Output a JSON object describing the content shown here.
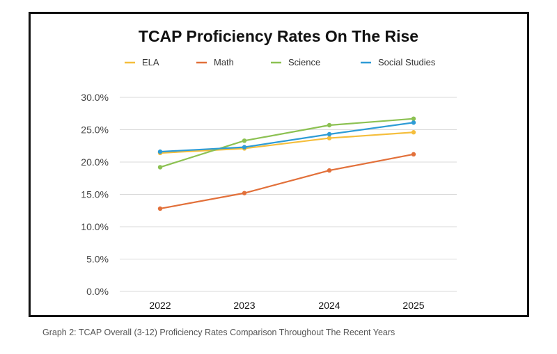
{
  "chart_data": {
    "type": "line",
    "title": "TCAP Proficiency Rates On The Rise",
    "xlabel": "",
    "ylabel": "",
    "categories": [
      "2022",
      "2023",
      "2024",
      "2025"
    ],
    "ylim": [
      0,
      30
    ],
    "yticks": [
      "0.0%",
      "5.0%",
      "10.0%",
      "15.0%",
      "20.0%",
      "25.0%",
      "30.0%"
    ],
    "grid": true,
    "legend_position": "top",
    "series": [
      {
        "name": "ELA",
        "color": "#F5BE3C",
        "values": [
          21.4,
          22.1,
          23.7,
          24.6
        ]
      },
      {
        "name": "Math",
        "color": "#E2703A",
        "values": [
          12.8,
          15.2,
          18.7,
          21.2
        ]
      },
      {
        "name": "Science",
        "color": "#8CC152",
        "values": [
          19.2,
          23.3,
          25.7,
          26.7
        ]
      },
      {
        "name": "Social Studies",
        "color": "#2E9CD6",
        "values": [
          21.6,
          22.3,
          24.3,
          26.1
        ]
      }
    ]
  },
  "caption": "Graph 2: TCAP Overall (3-12) Proficiency Rates Comparison Throughout The Recent Years"
}
